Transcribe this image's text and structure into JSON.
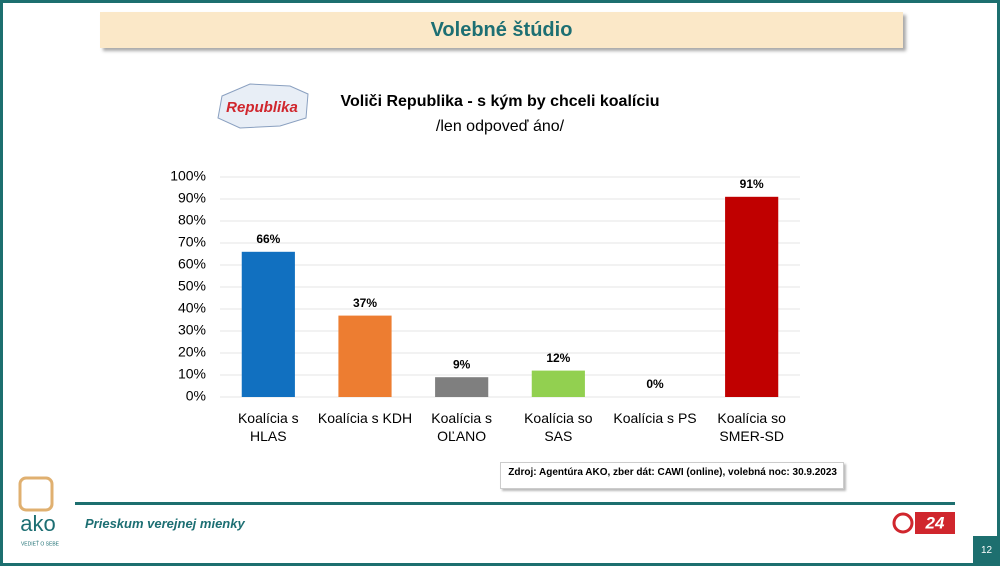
{
  "header": {
    "title": "Volebné štúdio"
  },
  "logo": {
    "text": "Republika"
  },
  "chart_data": {
    "type": "bar",
    "title": "Voliči Republika - s kým by chceli koalíciu",
    "subtitle": "/len odpoveď áno/",
    "categories": [
      "Koalícia s HLAS",
      "Koalícia s KDH",
      "Koalícia s OĽANO",
      "Koalícia so SAS",
      "Koalícia s PS",
      "Koalícia so SMER-SD"
    ],
    "values": [
      66,
      37,
      9,
      12,
      0,
      91
    ],
    "value_labels": [
      "66%",
      "37%",
      "9%",
      "12%",
      "0%",
      "91%"
    ],
    "colors": [
      "#1170c0",
      "#ed7d31",
      "#7f7f7f",
      "#92d050",
      "#a5a5a5",
      "#c00000"
    ],
    "ylim": [
      0,
      100
    ],
    "yticks": [
      {
        "value": 0,
        "label": "0%"
      },
      {
        "value": 10,
        "label": "10%"
      },
      {
        "value": 20,
        "label": "20%"
      },
      {
        "value": 30,
        "label": "30%"
      },
      {
        "value": 40,
        "label": "40%"
      },
      {
        "value": 50,
        "label": "50%"
      },
      {
        "value": 60,
        "label": "60%"
      },
      {
        "value": 70,
        "label": "70%"
      },
      {
        "value": 80,
        "label": "80%"
      },
      {
        "value": 90,
        "label": "90%"
      },
      {
        "value": 100,
        "label": "100%"
      }
    ],
    "grid": true
  },
  "source": "Zdroj: Agentúra AKO, zber dát: CAWI (online), volebná noc: 30.9.2023",
  "footer": {
    "text": "Prieskum verejnej mienky",
    "ako": "ako",
    "ako_tagline": "VEDIEŤ O SEBE",
    "tv": "24",
    "page": "12"
  }
}
